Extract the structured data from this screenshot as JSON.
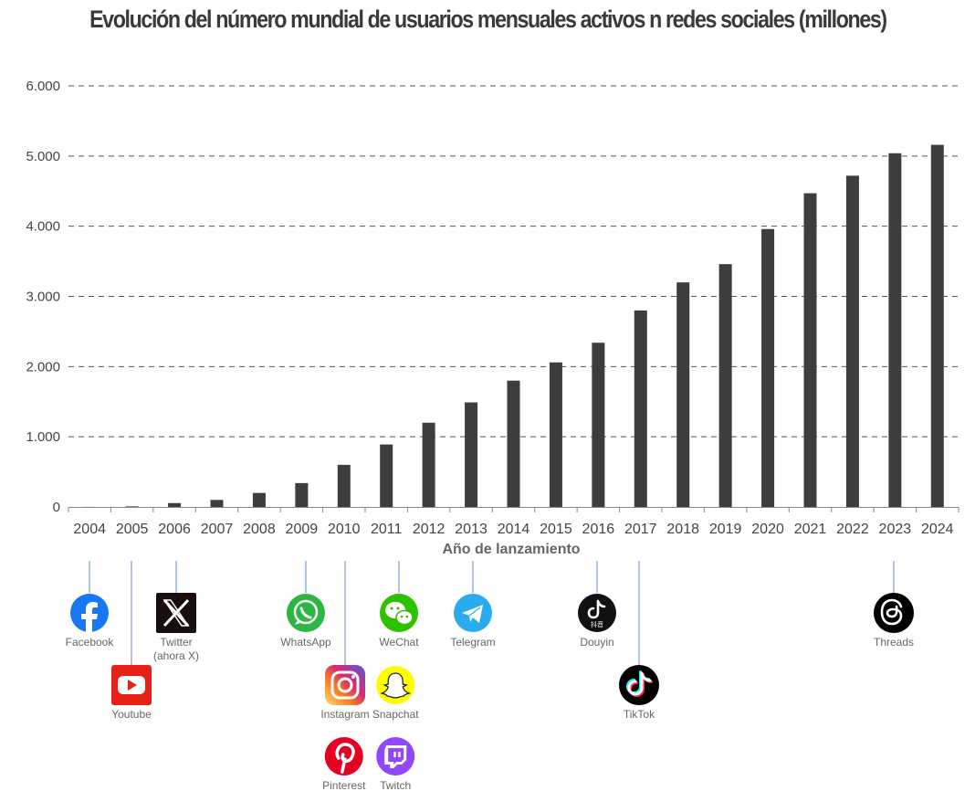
{
  "title": "Evolución del número mundial de usuarios mensuales activos n redes sociales (millones)",
  "chart_data": {
    "type": "bar",
    "title": "Evolución del número mundial de usuarios mensuales activos n redes sociales (millones)",
    "xlabel": "Año de lanzamiento",
    "ylabel": "",
    "ylim": [
      0,
      6000
    ],
    "yticks": [
      "0",
      "1.000",
      "2.000",
      "3.000",
      "4.000",
      "5.000",
      "6.000"
    ],
    "yticks_values": [
      0,
      1000,
      2000,
      3000,
      4000,
      5000,
      6000
    ],
    "grid": "horizontal dashed",
    "categories": [
      "2004",
      "2005",
      "2006",
      "2007",
      "2008",
      "2009",
      "2010",
      "2011",
      "2012",
      "2013",
      "2014",
      "2015",
      "2016",
      "2017",
      "2018",
      "2019",
      "2020",
      "2021",
      "2022",
      "2023",
      "2024"
    ],
    "values": [
      1,
      8,
      55,
      100,
      200,
      340,
      600,
      890,
      1200,
      1490,
      1800,
      2060,
      2340,
      2800,
      3200,
      3460,
      3960,
      4470,
      4720,
      5040,
      5160
    ],
    "color": "#3d3d3d"
  },
  "launches": [
    {
      "name": "Facebook",
      "year": "2004",
      "row": 0,
      "icon": "facebook-icon",
      "color": "#1877f2"
    },
    {
      "name": "Youtube",
      "year": "2005",
      "row": 1,
      "icon": "youtube-icon",
      "color": "#e62117"
    },
    {
      "name": "Twitter",
      "name2": "(ahora X)",
      "year": "2006",
      "row": 0,
      "icon": "x-twitter-icon",
      "color": "#1a0d0d"
    },
    {
      "name": "WhatsApp",
      "year": "2009",
      "row": 0,
      "icon": "whatsapp-icon",
      "color": "#2cb742"
    },
    {
      "name": "Instagram",
      "year": "2010",
      "row": 1,
      "icon": "instagram-icon",
      "color": "#c13584"
    },
    {
      "name": "Pinterest",
      "year": "2010",
      "row": 2,
      "icon": "pinterest-icon",
      "color": "#e60023"
    },
    {
      "name": "WeChat",
      "year": "2011",
      "row": 0,
      "icon": "wechat-icon",
      "color": "#2dc100"
    },
    {
      "name": "Snapchat",
      "year": "2011",
      "row": 1,
      "icon": "snapchat-icon",
      "color": "#fffc00"
    },
    {
      "name": "Twitch",
      "year": "2011",
      "row": 2,
      "icon": "twitch-icon",
      "color": "#9146ff"
    },
    {
      "name": "Telegram",
      "year": "2013",
      "row": 0,
      "icon": "telegram-icon",
      "color": "#2aabee"
    },
    {
      "name": "Douyin",
      "year": "2016",
      "row": 0,
      "icon": "douyin-icon",
      "color": "#111111"
    },
    {
      "name": "TikTok",
      "year": "2017",
      "row": 1,
      "icon": "tiktok-icon",
      "color": "#000000"
    },
    {
      "name": "Threads",
      "year": "2023",
      "row": 0,
      "icon": "threads-icon",
      "color": "#000000"
    }
  ],
  "colors": {
    "bar": "#3d3d3d",
    "grid": "#555555",
    "connector": "#7f9bd0",
    "text": "#444444"
  }
}
